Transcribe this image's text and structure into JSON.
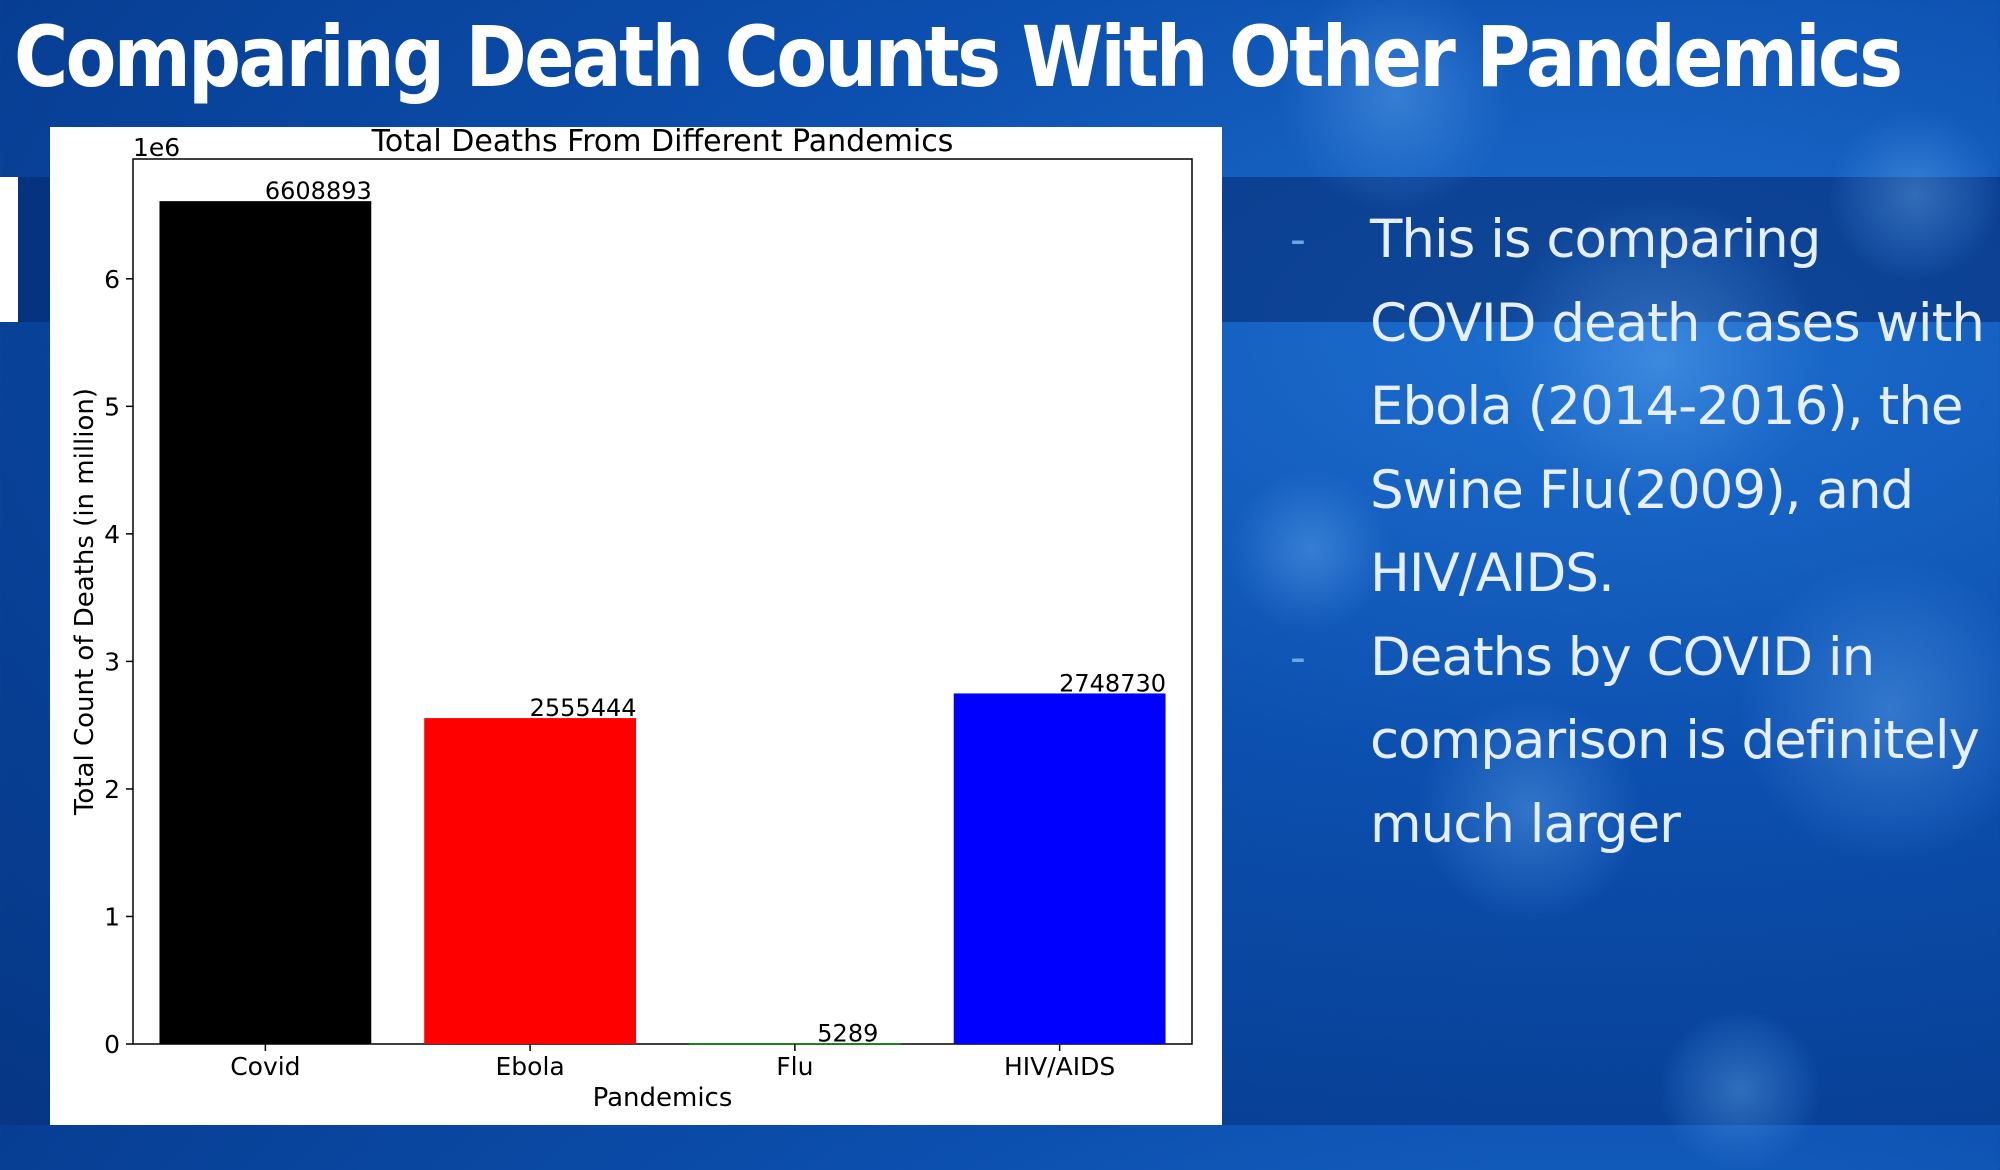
{
  "slide": {
    "title": "Comparing Death Counts With Other Pandemics",
    "bullets": [
      "This is comparing COVID death cases with Ebola (2014-2016), the Swine Flu(2009), and HIV/AIDS.",
      "Deaths by COVID in comparison is definitely much larger"
    ],
    "bullet_marker": "-"
  },
  "chart_data": {
    "type": "bar",
    "title": "Total Deaths From Different Pandemics",
    "xlabel": "Pandemics",
    "ylabel": "Total Count of Deaths (in million)",
    "y_offset_label": "1e6",
    "categories": [
      "Covid",
      "Ebola",
      "Flu",
      "HIV/AIDS"
    ],
    "values": [
      6608893,
      2555444,
      5289,
      2748730
    ],
    "data_labels": [
      "6608893",
      "2555444",
      "5289",
      "2748730"
    ],
    "colors": [
      "#000000",
      "#ff0000",
      "#008000",
      "#0000ff"
    ],
    "ylim": [
      0,
      6939338
    ],
    "yticks": [
      0,
      1000000,
      2000000,
      3000000,
      4000000,
      5000000,
      6000000
    ],
    "ytick_labels": [
      "0",
      "1",
      "2",
      "3",
      "4",
      "5",
      "6"
    ],
    "grid": false,
    "legend": "none"
  }
}
